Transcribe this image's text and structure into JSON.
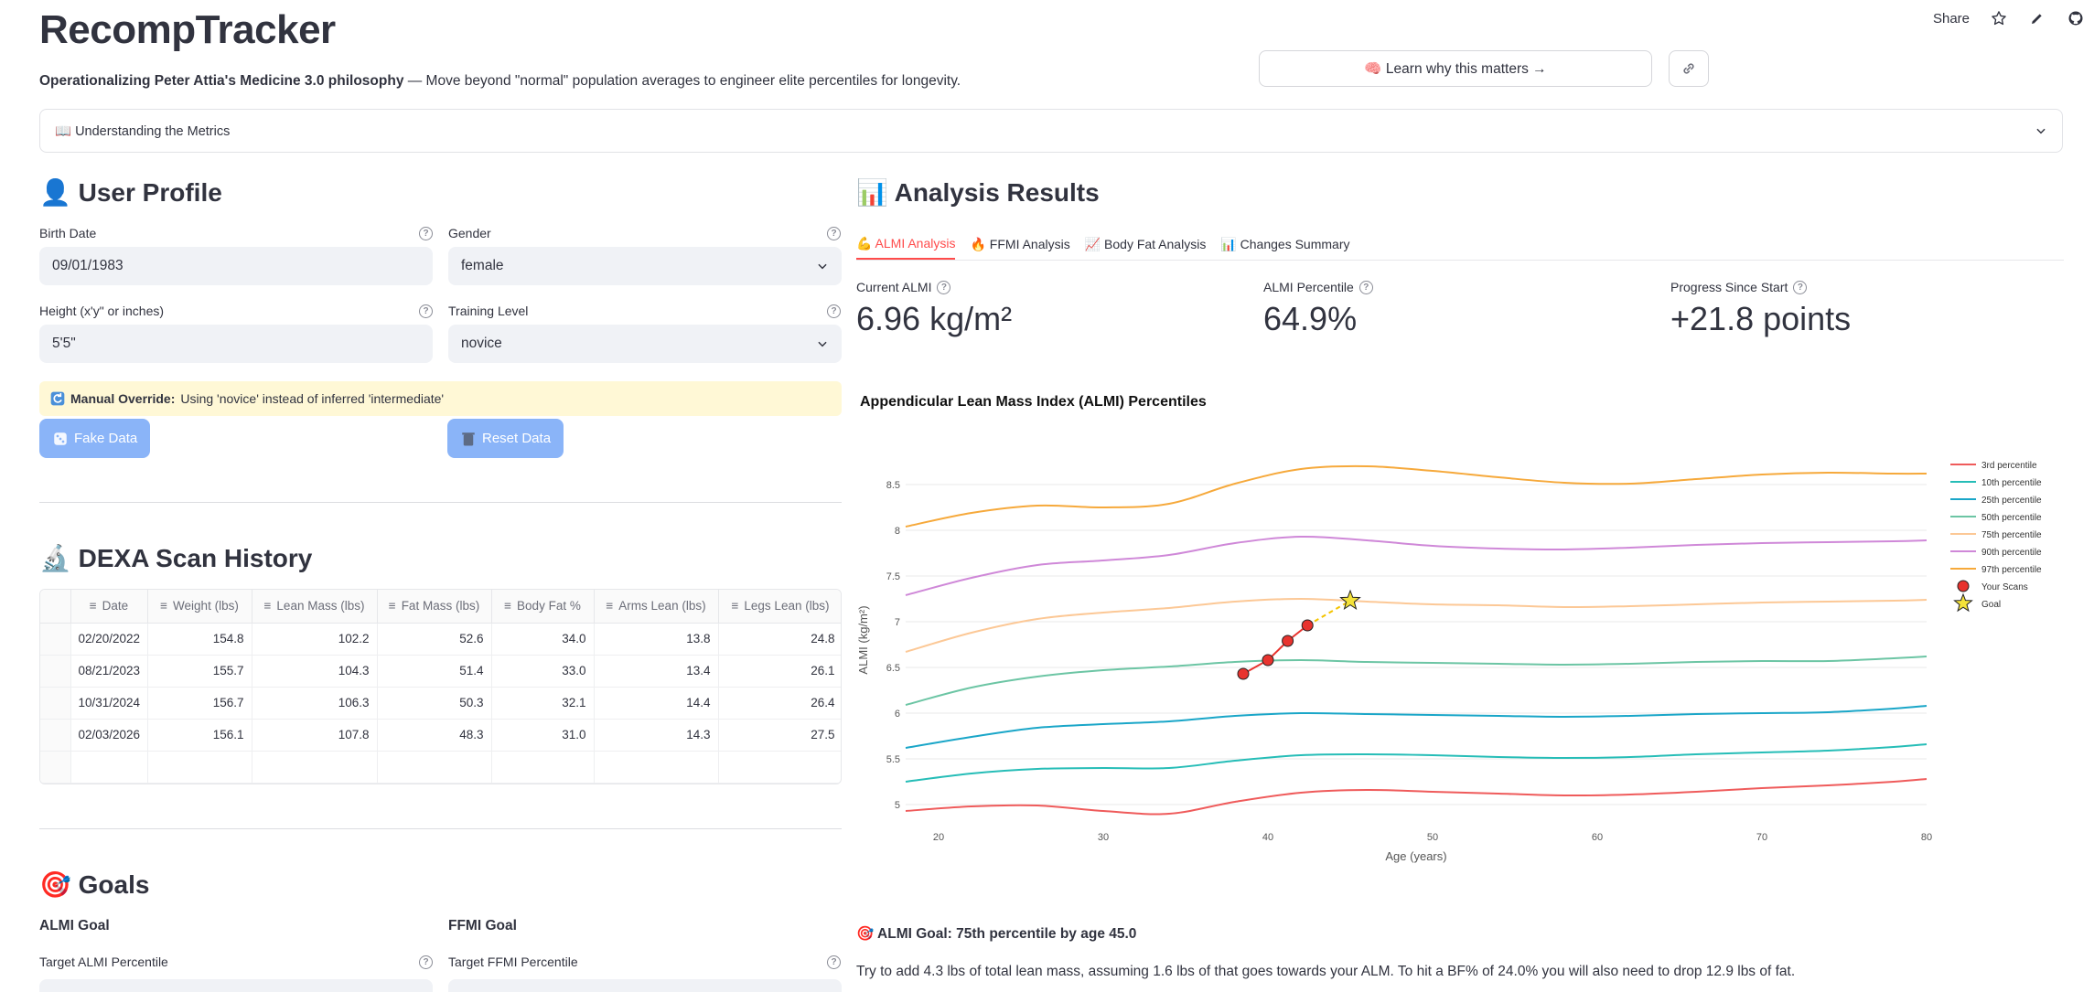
{
  "app": {
    "title": "RecompTracker",
    "subtitle_bold": "Operationalizing Peter Attia's Medicine 3.0 philosophy",
    "subtitle_rest": " — Move beyond \"normal\" population averages to engineer elite percentiles for longevity."
  },
  "toolbar": {
    "share_label": "Share",
    "icons": [
      "star-icon",
      "pencil-icon",
      "github-icon"
    ]
  },
  "learn_button": {
    "label": "🧠 Learn why this matters →"
  },
  "expander": {
    "label": "📖 Understanding the Metrics"
  },
  "profile": {
    "title": "👤 User Profile",
    "birth_date_label": "Birth Date",
    "birth_date_value": "09/01/1983",
    "gender_label": "Gender",
    "gender_value": "female",
    "height_label": "Height (x'y\" or inches)",
    "height_value": "5'5\"",
    "training_label": "Training Level",
    "training_value": "novice",
    "override_bold": "Manual Override:",
    "override_text": "Using 'novice' instead of inferred 'intermediate'",
    "fake_data_label": "Fake Data",
    "reset_data_label": "Reset Data"
  },
  "dexa": {
    "title": "🔬 DEXA Scan History",
    "columns": [
      "Date",
      "Weight (lbs)",
      "Lean Mass (lbs)",
      "Fat Mass (lbs)",
      "Body Fat %",
      "Arms Lean (lbs)",
      "Legs Lean (lbs)"
    ],
    "rows": [
      [
        "02/20/2022",
        "154.8",
        "102.2",
        "52.6",
        "34.0",
        "13.8",
        "24.8"
      ],
      [
        "08/21/2023",
        "155.7",
        "104.3",
        "51.4",
        "33.0",
        "13.4",
        "26.1"
      ],
      [
        "10/31/2024",
        "156.7",
        "106.3",
        "50.3",
        "32.1",
        "14.4",
        "26.4"
      ],
      [
        "02/03/2026",
        "156.1",
        "107.8",
        "48.3",
        "31.0",
        "14.3",
        "27.5"
      ]
    ]
  },
  "goals": {
    "title": "🎯 Goals",
    "almi_goal_label": "ALMI Goal",
    "ffmi_goal_label": "FFMI Goal",
    "target_almi_label": "Target ALMI Percentile",
    "target_ffmi_label": "Target FFMI Percentile"
  },
  "analysis": {
    "title": "📊 Analysis Results",
    "tabs": [
      "💪 ALMI Analysis",
      "🔥 FFMI Analysis",
      "📈 Body Fat Analysis",
      "📊 Changes Summary"
    ],
    "metrics": [
      {
        "label": "Current ALMI",
        "value": "6.96 kg/m²"
      },
      {
        "label": "ALMI Percentile",
        "value": "64.9%"
      },
      {
        "label": "Progress Since Start",
        "value": "+21.8 points"
      }
    ],
    "goal_line": "🎯 ALMI Goal: 75th percentile by age 45.0",
    "goal_desc": "Try to add 4.3 lbs of total lean mass, assuming 1.6 lbs of that goes towards your ALM. To hit a BF% of 24.0% you will also need to drop 12.9 lbs of fat."
  },
  "chart_data": {
    "type": "line",
    "title": "Appendicular Lean Mass Index (ALMI) Percentiles",
    "xlabel": "Age (years)",
    "ylabel": "ALMI (kg/m²)",
    "xlim": [
      18,
      80
    ],
    "ylim": [
      4.85,
      8.75
    ],
    "x_ticks": [
      20,
      30,
      40,
      50,
      60,
      70,
      80
    ],
    "x_tick_labels": [
      "20",
      "30",
      "40",
      "50",
      "60",
      "70",
      "80"
    ],
    "y_ticks": [
      5,
      5.5,
      6,
      6.5,
      7,
      7.5,
      8,
      8.5
    ],
    "y_tick_labels": [
      "5",
      "5.5",
      "6",
      "6.5",
      "7",
      "7.5",
      "8",
      "8.5"
    ],
    "grid": true,
    "legend_position": "right",
    "x": [
      18,
      22,
      26,
      30,
      34,
      38,
      42,
      46,
      50,
      54,
      58,
      62,
      66,
      70,
      74,
      78,
      80
    ],
    "series": [
      {
        "name": "3rd percentile",
        "color": "#ef5b5b",
        "values": [
          4.93,
          4.98,
          4.99,
          4.93,
          4.9,
          5.03,
          5.13,
          5.16,
          5.14,
          5.12,
          5.1,
          5.11,
          5.14,
          5.18,
          5.21,
          5.25,
          5.28
        ]
      },
      {
        "name": "10th percentile",
        "color": "#26bdb7",
        "values": [
          5.25,
          5.34,
          5.39,
          5.4,
          5.4,
          5.48,
          5.54,
          5.55,
          5.54,
          5.52,
          5.51,
          5.52,
          5.55,
          5.57,
          5.59,
          5.63,
          5.66
        ]
      },
      {
        "name": "25th percentile",
        "color": "#1aa6c8",
        "values": [
          5.62,
          5.74,
          5.84,
          5.88,
          5.91,
          5.97,
          6.0,
          5.99,
          5.98,
          5.97,
          5.96,
          5.97,
          5.99,
          6.0,
          6.01,
          6.05,
          6.08
        ]
      },
      {
        "name": "50th percentile",
        "color": "#6cc5a4",
        "values": [
          6.09,
          6.28,
          6.4,
          6.47,
          6.51,
          6.56,
          6.58,
          6.56,
          6.55,
          6.54,
          6.53,
          6.54,
          6.56,
          6.57,
          6.57,
          6.6,
          6.62
        ]
      },
      {
        "name": "75th percentile",
        "color": "#fcc896",
        "values": [
          6.67,
          6.88,
          7.03,
          7.1,
          7.15,
          7.22,
          7.25,
          7.22,
          7.19,
          7.18,
          7.16,
          7.17,
          7.19,
          7.21,
          7.22,
          7.23,
          7.24
        ]
      },
      {
        "name": "90th percentile",
        "color": "#cf88d8",
        "values": [
          7.29,
          7.48,
          7.62,
          7.67,
          7.73,
          7.86,
          7.93,
          7.89,
          7.83,
          7.8,
          7.79,
          7.81,
          7.84,
          7.86,
          7.87,
          7.88,
          7.89
        ]
      },
      {
        "name": "97th percentile",
        "color": "#f6a93b",
        "values": [
          8.04,
          8.19,
          8.27,
          8.25,
          8.29,
          8.51,
          8.67,
          8.7,
          8.65,
          8.58,
          8.52,
          8.51,
          8.56,
          8.61,
          8.63,
          8.62,
          8.62
        ]
      }
    ],
    "scans": {
      "name": "Your Scans",
      "color": "#e8332e",
      "x": [
        38.5,
        40.0,
        41.2,
        42.4
      ],
      "y": [
        6.43,
        6.58,
        6.79,
        6.96
      ]
    },
    "goal": {
      "name": "Goal",
      "color": "#f4e23a",
      "x": 45.0,
      "y": 7.23
    }
  }
}
